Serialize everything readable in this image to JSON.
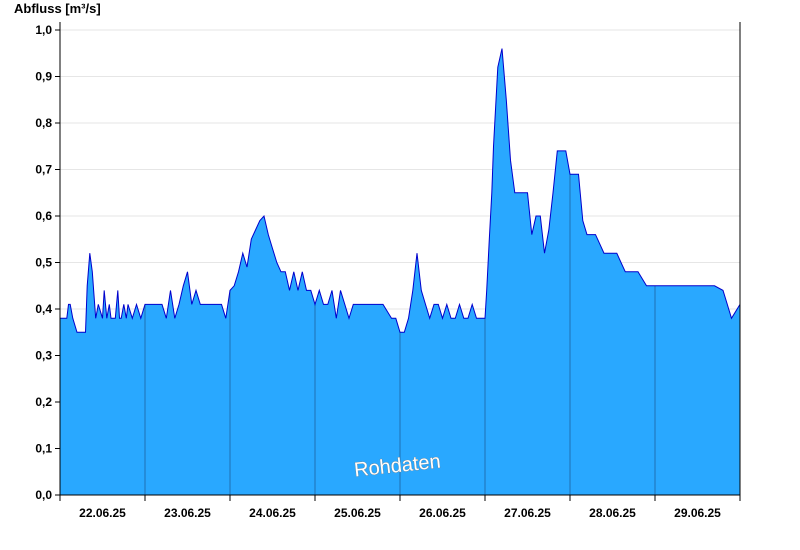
{
  "chart_data": {
    "type": "area",
    "ylabel": "Abfluss [m³/s]",
    "watermark": "Rohdaten",
    "ylim": [
      0,
      1.0
    ],
    "yticks": [
      "0,0",
      "0,1",
      "0,2",
      "0,3",
      "0,4",
      "0,5",
      "0,6",
      "0,7",
      "0,8",
      "0,9",
      "1,0"
    ],
    "ytick_values": [
      0,
      0.1,
      0.2,
      0.3,
      0.4,
      0.5,
      0.6,
      0.7,
      0.8,
      0.9,
      1.0
    ],
    "xlim": [
      0,
      8
    ],
    "xticks": [
      "22.06.25",
      "23.06.25",
      "24.06.25",
      "25.06.25",
      "26.06.25",
      "27.06.25",
      "28.06.25",
      "29.06.25"
    ],
    "grid": true,
    "colors": {
      "fill": "#29a8ff",
      "line": "#0000cc",
      "grid": "#e6e6e6",
      "day_separator": "#1f6fb3"
    },
    "series": [
      {
        "x": [
          0,
          0.08,
          0.1,
          0.12,
          0.15,
          0.2,
          0.3,
          0.32,
          0.35,
          0.38,
          0.4,
          0.42,
          0.45,
          0.5,
          0.52,
          0.55,
          0.58,
          0.6,
          0.65,
          0.68,
          0.7,
          0.72,
          0.75,
          0.78,
          0.8,
          0.85,
          0.9,
          0.95,
          1.0,
          1.05,
          1.1,
          1.2,
          1.25,
          1.3,
          1.35,
          1.4,
          1.45,
          1.5,
          1.55,
          1.6,
          1.65,
          1.7,
          1.8,
          1.9,
          1.95,
          2.0,
          2.05,
          2.1,
          2.15,
          2.2,
          2.25,
          2.3,
          2.35,
          2.4,
          2.45,
          2.5,
          2.55,
          2.6,
          2.65,
          2.7,
          2.75,
          2.8,
          2.85,
          2.9,
          2.95,
          3.0,
          3.05,
          3.1,
          3.15,
          3.2,
          3.25,
          3.3,
          3.35,
          3.4,
          3.45,
          3.5,
          3.6,
          3.7,
          3.8,
          3.9,
          3.95,
          4.0,
          4.05,
          4.1,
          4.15,
          4.2,
          4.25,
          4.3,
          4.35,
          4.4,
          4.45,
          4.5,
          4.55,
          4.6,
          4.65,
          4.7,
          4.75,
          4.8,
          4.85,
          4.9,
          4.95,
          5.0,
          5.02,
          5.05,
          5.08,
          5.1,
          5.15,
          5.2,
          5.25,
          5.3,
          5.35,
          5.4,
          5.45,
          5.5,
          5.55,
          5.6,
          5.65,
          5.7,
          5.75,
          5.8,
          5.85,
          5.9,
          5.95,
          6.0,
          6.05,
          6.1,
          6.15,
          6.2,
          6.3,
          6.4,
          6.45,
          6.5,
          6.55,
          6.6,
          6.65,
          6.7,
          6.8,
          6.9,
          6.95,
          7.0,
          7.1,
          7.2,
          7.3,
          7.4,
          7.5,
          7.6,
          7.7,
          7.8,
          7.85,
          7.9,
          8.0
        ],
        "y": [
          0.38,
          0.38,
          0.41,
          0.41,
          0.38,
          0.35,
          0.35,
          0.45,
          0.52,
          0.48,
          0.43,
          0.38,
          0.41,
          0.38,
          0.44,
          0.38,
          0.41,
          0.38,
          0.38,
          0.44,
          0.38,
          0.38,
          0.41,
          0.38,
          0.41,
          0.38,
          0.41,
          0.38,
          0.41,
          0.41,
          0.41,
          0.41,
          0.38,
          0.44,
          0.38,
          0.41,
          0.45,
          0.48,
          0.41,
          0.44,
          0.41,
          0.41,
          0.41,
          0.41,
          0.38,
          0.44,
          0.45,
          0.48,
          0.52,
          0.49,
          0.55,
          0.57,
          0.59,
          0.6,
          0.56,
          0.53,
          0.5,
          0.48,
          0.48,
          0.44,
          0.48,
          0.44,
          0.48,
          0.44,
          0.44,
          0.41,
          0.44,
          0.41,
          0.41,
          0.44,
          0.38,
          0.44,
          0.41,
          0.38,
          0.41,
          0.41,
          0.41,
          0.41,
          0.41,
          0.38,
          0.38,
          0.35,
          0.35,
          0.38,
          0.44,
          0.52,
          0.44,
          0.41,
          0.38,
          0.41,
          0.41,
          0.38,
          0.41,
          0.38,
          0.38,
          0.41,
          0.38,
          0.38,
          0.41,
          0.38,
          0.38,
          0.38,
          0.44,
          0.55,
          0.65,
          0.75,
          0.92,
          0.96,
          0.85,
          0.72,
          0.65,
          0.65,
          0.65,
          0.65,
          0.56,
          0.6,
          0.6,
          0.52,
          0.57,
          0.65,
          0.74,
          0.74,
          0.74,
          0.69,
          0.69,
          0.69,
          0.59,
          0.56,
          0.56,
          0.52,
          0.52,
          0.52,
          0.52,
          0.5,
          0.48,
          0.48,
          0.48,
          0.45,
          0.45,
          0.45,
          0.45,
          0.45,
          0.45,
          0.45,
          0.45,
          0.45,
          0.45,
          0.44,
          0.41,
          0.38,
          0.41
        ]
      }
    ]
  }
}
